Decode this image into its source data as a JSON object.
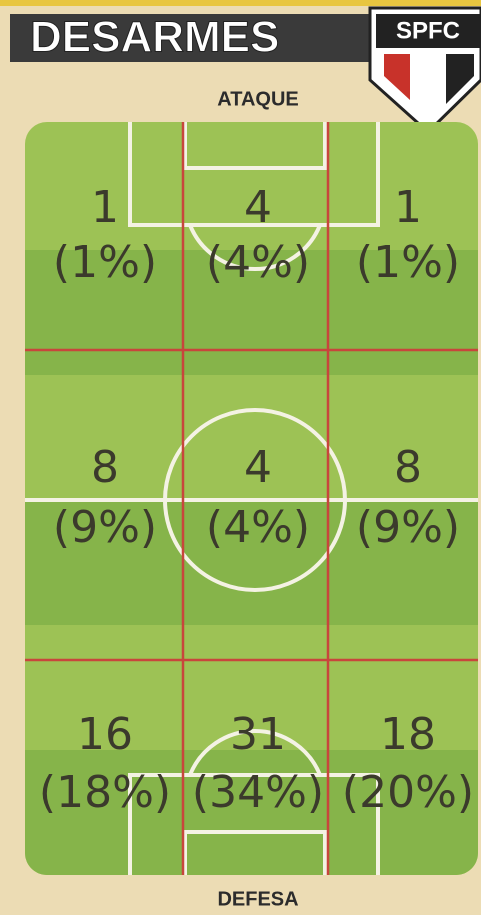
{
  "header": {
    "title": "DESARMES",
    "logo": "SPFC"
  },
  "pitch": {
    "top_label": "ATAQUE",
    "bottom_label": "DEFESA",
    "rows": [
      [
        {
          "count": 1,
          "share": "(1%)"
        },
        {
          "count": 4,
          "share": "(4%)"
        },
        {
          "count": 1,
          "share": "(1%)"
        }
      ],
      [
        {
          "count": 8,
          "share": "(9%)"
        },
        {
          "count": 4,
          "share": "(4%)"
        },
        {
          "count": 8,
          "share": "(9%)"
        }
      ],
      [
        {
          "count": 16,
          "share": "(18%)"
        },
        {
          "count": 31,
          "share": "(34%)"
        },
        {
          "count": 18,
          "share": "(20%)"
        }
      ]
    ]
  }
}
